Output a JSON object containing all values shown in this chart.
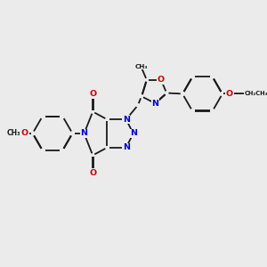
{
  "bg": "#ebebeb",
  "bc": "#1a1a1a",
  "Nc": "#0000cc",
  "Oc": "#cc0000",
  "lw": 1.3,
  "dbo": 0.013,
  "fs": 6.8,
  "fs_s": 5.5,
  "figsize": [
    3.0,
    3.0
  ],
  "dpi": 100,
  "xlim": [
    0,
    10
  ],
  "ylim": [
    0,
    10
  ]
}
